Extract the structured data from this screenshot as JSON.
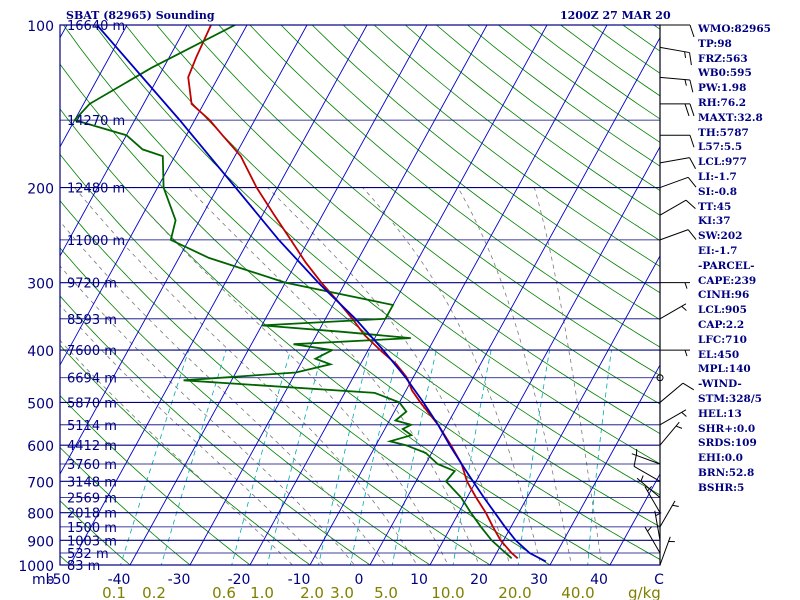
{
  "header": {
    "title": "SBAT (82965) Sounding",
    "datetime": "1200Z 27 MAR 20"
  },
  "indices": [
    "WMO:82965",
    "TP:98",
    "FRZ:563",
    "WB0:595",
    "PW:1.98",
    "RH:76.2",
    "MAXT:32.8",
    "TH:5787",
    "L57:5.5",
    "LCL:977",
    "LI:-1.7",
    "SI:-0.8",
    "TT:45",
    "KI:37",
    "SW:202",
    "EI:-1.7",
    "-PARCEL-",
    "CAPE:239",
    "CINH:96",
    "LCL:905",
    "CAP:2.2",
    "LFC:710",
    "EL:450",
    "MPL:140",
    "-WIND-",
    "STM:328/5",
    "HEL:13",
    "SHR+:0.0",
    "SRDS:109",
    "EHI:0.0",
    "BRN:52.8",
    "BSHR:5"
  ],
  "colors": {
    "frame": "#000080",
    "isobar": "#000080",
    "isotherm": "#0000c8",
    "dry_adiabat": "#008000",
    "moist_adiabat": "#7a7a7a",
    "mixing_ratio": "#00aaaa",
    "temperature": "#c00000",
    "dewpoint": "#006400",
    "parcel": "#0000c0",
    "mixing_label": "#808000",
    "text": "#000080",
    "wind": "#000000"
  },
  "chart_data": {
    "type": "line",
    "title": "SBAT (82965) Sounding",
    "subtitle": "1200Z 27 MAR 20",
    "x_axis": {
      "unit": "C",
      "unit_label": "C",
      "ticks": [
        "-50",
        "-40",
        "-30",
        "-20",
        "-10",
        "0",
        "10",
        "20",
        "30",
        "40",
        "C"
      ]
    },
    "y_axis": {
      "unit": "mb",
      "unit_label": "mb",
      "scale": "log",
      "range": [
        1000,
        100
      ],
      "ticks": [
        "100",
        "200",
        "300",
        "400",
        "500",
        "600",
        "700",
        "800",
        "900",
        "1000"
      ]
    },
    "mixing_ratio": {
      "unit": "g/kg",
      "labels": [
        "0.1",
        "0.2",
        "0.6",
        "1.0",
        "2.0",
        "3.0",
        "5.0",
        "10.0",
        "20.0",
        "40.0"
      ]
    },
    "heights": [
      {
        "p": 100,
        "label": "16640 m"
      },
      {
        "p": 150,
        "label": "14270 m"
      },
      {
        "p": 200,
        "label": "12480 m"
      },
      {
        "p": 250,
        "label": "11000 m"
      },
      {
        "p": 300,
        "label": "9720 m"
      },
      {
        "p": 350,
        "label": "8593 m"
      },
      {
        "p": 400,
        "label": "7600 m"
      },
      {
        "p": 450,
        "label": "6694 m"
      },
      {
        "p": 500,
        "label": "5870 m"
      },
      {
        "p": 550,
        "label": "5114 m"
      },
      {
        "p": 600,
        "label": "4412 m"
      },
      {
        "p": 650,
        "label": "3760 m"
      },
      {
        "p": 700,
        "label": "3148 m"
      },
      {
        "p": 750,
        "label": "2569 m"
      },
      {
        "p": 800,
        "label": "2018 m"
      },
      {
        "p": 850,
        "label": "1500 m"
      },
      {
        "p": 900,
        "label": "1003 m"
      },
      {
        "p": 950,
        "label": "532 m"
      },
      {
        "p": 1000,
        "label": "83 m"
      }
    ],
    "series": [
      {
        "key": "temperature",
        "points": [
          [
            972,
            24.0
          ],
          [
            950,
            22.5
          ],
          [
            925,
            21.0
          ],
          [
            900,
            19.5
          ],
          [
            850,
            17.0
          ],
          [
            800,
            14.5
          ],
          [
            750,
            11.5
          ],
          [
            700,
            8.5
          ],
          [
            650,
            6.0
          ],
          [
            600,
            2.5
          ],
          [
            550,
            -1.5
          ],
          [
            500,
            -6.5
          ],
          [
            475,
            -9.0
          ],
          [
            450,
            -11.0
          ],
          [
            425,
            -14.0
          ],
          [
            400,
            -18.0
          ],
          [
            375,
            -22.0
          ],
          [
            350,
            -25.5
          ],
          [
            325,
            -29.5
          ],
          [
            300,
            -34.0
          ],
          [
            275,
            -38.5
          ],
          [
            250,
            -43.0
          ],
          [
            225,
            -48.0
          ],
          [
            200,
            -53.5
          ],
          [
            175,
            -59.0
          ],
          [
            160,
            -64.0
          ],
          [
            150,
            -67.5
          ],
          [
            140,
            -72.0
          ],
          [
            125,
            -75.0
          ],
          [
            115,
            -75.5
          ],
          [
            100,
            -76.0
          ]
        ]
      },
      {
        "key": "dewpoint",
        "points": [
          [
            972,
            23.0
          ],
          [
            950,
            21.5
          ],
          [
            900,
            18.0
          ],
          [
            850,
            15.0
          ],
          [
            800,
            12.0
          ],
          [
            750,
            9.0
          ],
          [
            700,
            5.0
          ],
          [
            670,
            5.5
          ],
          [
            650,
            2.0
          ],
          [
            620,
            -1.0
          ],
          [
            600,
            -5.0
          ],
          [
            590,
            -8.0
          ],
          [
            575,
            -5.0
          ],
          [
            560,
            -7.0
          ],
          [
            550,
            -6.0
          ],
          [
            540,
            -9.0
          ],
          [
            520,
            -8.0
          ],
          [
            500,
            -10.0
          ],
          [
            480,
            -15.0
          ],
          [
            455,
            -48.0
          ],
          [
            440,
            -30.0
          ],
          [
            425,
            -25.0
          ],
          [
            415,
            -28.0
          ],
          [
            400,
            -26.0
          ],
          [
            390,
            -33.0
          ],
          [
            380,
            -14.0
          ],
          [
            370,
            -26.0
          ],
          [
            360,
            -40.0
          ],
          [
            350,
            -20.0
          ],
          [
            330,
            -20.0
          ],
          [
            300,
            -40.0
          ],
          [
            270,
            -55.0
          ],
          [
            250,
            -63.0
          ],
          [
            230,
            -64.0
          ],
          [
            200,
            -69.0
          ],
          [
            175,
            -72.0
          ],
          [
            170,
            -76.0
          ],
          [
            160,
            -80.0
          ],
          [
            150,
            -90.0
          ],
          [
            140,
            -89.0
          ],
          [
            120,
            -82.0
          ],
          [
            100,
            -72.0
          ]
        ]
      },
      {
        "key": "parcel",
        "points": [
          [
            985,
            29.0
          ],
          [
            950,
            25.5
          ],
          [
            900,
            22.0
          ],
          [
            850,
            19.0
          ],
          [
            800,
            16.0
          ],
          [
            750,
            12.8
          ],
          [
            700,
            9.5
          ],
          [
            650,
            6.0
          ],
          [
            600,
            2.3
          ],
          [
            550,
            -1.5
          ],
          [
            500,
            -6.0
          ],
          [
            450,
            -11.2
          ],
          [
            400,
            -17.5
          ],
          [
            350,
            -25.0
          ],
          [
            300,
            -34.5
          ],
          [
            250,
            -45.0
          ],
          [
            200,
            -57.0
          ],
          [
            150,
            -72.5
          ],
          [
            100,
            -95.0
          ]
        ]
      }
    ],
    "winds": [
      {
        "p": 100,
        "dir": 90,
        "spd": 10
      },
      {
        "p": 110,
        "dir": 100,
        "spd": 15
      },
      {
        "p": 125,
        "dir": 95,
        "spd": 15
      },
      {
        "p": 140,
        "dir": 90,
        "spd": 20
      },
      {
        "p": 160,
        "dir": 90,
        "spd": 10
      },
      {
        "p": 180,
        "dir": 80,
        "spd": 10
      },
      {
        "p": 200,
        "dir": 70,
        "spd": 10
      },
      {
        "p": 225,
        "dir": 60,
        "spd": 10
      },
      {
        "p": 250,
        "dir": 70,
        "spd": 10
      },
      {
        "p": 300,
        "dir": 90,
        "spd": 5
      },
      {
        "p": 350,
        "dir": 60,
        "spd": 5
      },
      {
        "p": 400,
        "dir": 90,
        "spd": 5
      },
      {
        "p": 450,
        "dir": 0,
        "spd": 0
      },
      {
        "p": 500,
        "dir": 50,
        "spd": 10
      },
      {
        "p": 550,
        "dir": 60,
        "spd": 5
      },
      {
        "p": 600,
        "dir": 40,
        "spd": 5
      },
      {
        "p": 650,
        "dir": 290,
        "spd": 5
      },
      {
        "p": 700,
        "dir": 300,
        "spd": 10
      },
      {
        "p": 750,
        "dir": 310,
        "spd": 5
      },
      {
        "p": 800,
        "dir": 330,
        "spd": 5
      },
      {
        "p": 850,
        "dir": 30,
        "spd": 5
      },
      {
        "p": 900,
        "dir": 350,
        "spd": 5
      },
      {
        "p": 950,
        "dir": 330,
        "spd": 5
      },
      {
        "p": 1000,
        "dir": 20,
        "spd": 5
      }
    ]
  }
}
